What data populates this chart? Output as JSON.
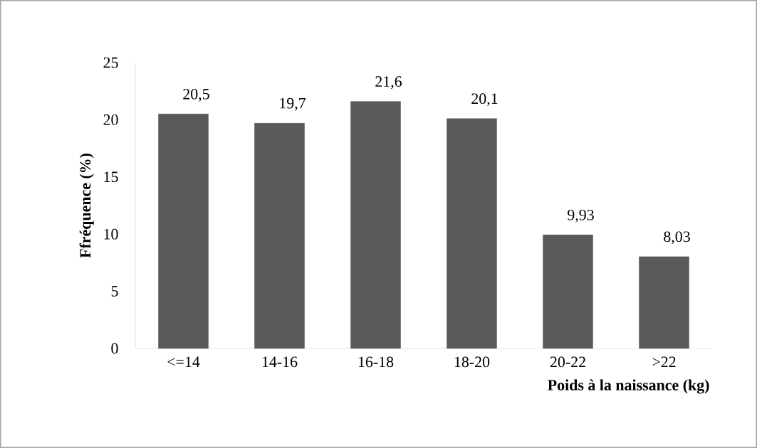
{
  "chart_data": {
    "type": "bar",
    "ylabel": "Ffréquence (%)",
    "xlabel": "Poids à la naissance (kg)",
    "categories": [
      "<=14",
      "14-16",
      "16-18",
      "18-20",
      "20-22",
      ">22"
    ],
    "values": [
      20.5,
      19.7,
      21.6,
      20.1,
      9.93,
      8.03
    ],
    "value_labels": [
      "20,5",
      "19,7",
      "21,6",
      "20,1",
      "9,93",
      "8,03"
    ],
    "color": "#5a5a5a",
    "ylim": [
      0,
      25
    ],
    "yticks": [
      0,
      5,
      10,
      15,
      20,
      25
    ]
  }
}
